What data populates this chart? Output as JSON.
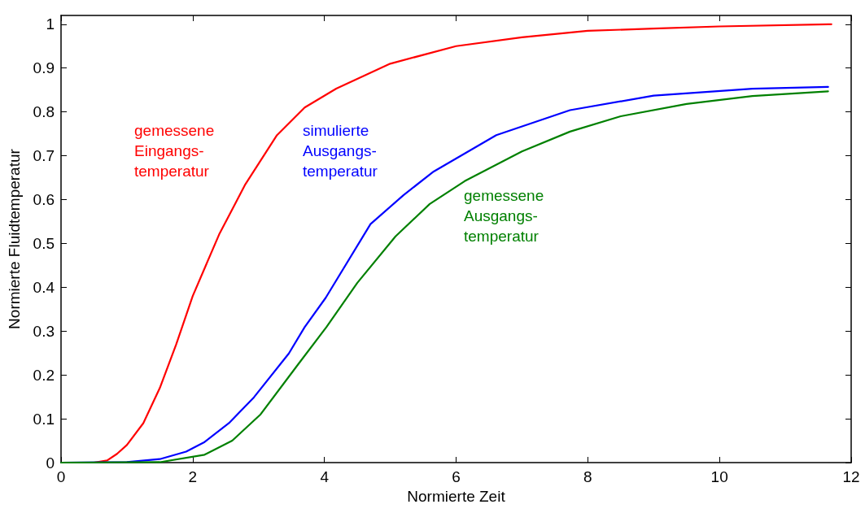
{
  "chart_data": {
    "type": "line",
    "xlabel": "Normierte Zeit",
    "ylabel": "Normierte Fluidtemperatur",
    "xlim": [
      0,
      12
    ],
    "xticks": [
      0,
      2,
      4,
      6,
      8,
      10,
      12
    ],
    "ylim": [
      0,
      1.02
    ],
    "yticks": [
      0,
      0.1,
      0.2,
      0.3,
      0.4,
      0.5,
      0.6,
      0.7,
      0.8,
      0.9,
      1
    ],
    "grid": false,
    "marker": "none",
    "line_style": "solid",
    "series": [
      {
        "color": "#ff0000",
        "x": [
          0,
          0.5,
          0.7,
          0.85,
          1.0,
          1.25,
          1.5,
          1.75,
          2.0,
          2.4,
          2.8,
          3.28,
          3.7,
          4.18,
          5.0,
          6.0,
          7.0,
          8.0,
          9.0,
          10.0,
          11.7
        ],
        "values": [
          0,
          0,
          0.005,
          0.02,
          0.04,
          0.09,
          0.17,
          0.27,
          0.38,
          0.52,
          0.635,
          0.747,
          0.81,
          0.853,
          0.91,
          0.95,
          0.97,
          0.985,
          0.99,
          0.995,
          1.0
        ]
      },
      {
        "color": "#0000ff",
        "x": [
          0,
          1.0,
          1.5,
          1.9,
          2.18,
          2.55,
          2.93,
          3.46,
          3.7,
          4.02,
          4.7,
          5.2,
          5.66,
          6.61,
          7.73,
          9.0,
          10.5,
          11.65
        ],
        "values": [
          0,
          0.001,
          0.008,
          0.025,
          0.047,
          0.09,
          0.149,
          0.249,
          0.309,
          0.376,
          0.544,
          0.61,
          0.664,
          0.747,
          0.804,
          0.837,
          0.853,
          0.857
        ]
      },
      {
        "color": "#008000",
        "x": [
          0,
          1.5,
          2.18,
          2.6,
          3.03,
          3.6,
          4.03,
          4.5,
          5.08,
          5.6,
          6.13,
          7.0,
          7.73,
          8.5,
          9.5,
          10.5,
          11.65
        ],
        "values": [
          0,
          0.001,
          0.018,
          0.05,
          0.11,
          0.224,
          0.309,
          0.41,
          0.516,
          0.59,
          0.642,
          0.71,
          0.755,
          0.79,
          0.818,
          0.836,
          0.847
        ]
      }
    ],
    "annotations": [
      "gemessene\nEingangs-\ntemperatur",
      "simulierte\nAusgangs-\ntemperatur",
      "gemessene\nAusgangs-\ntemperatur"
    ]
  }
}
